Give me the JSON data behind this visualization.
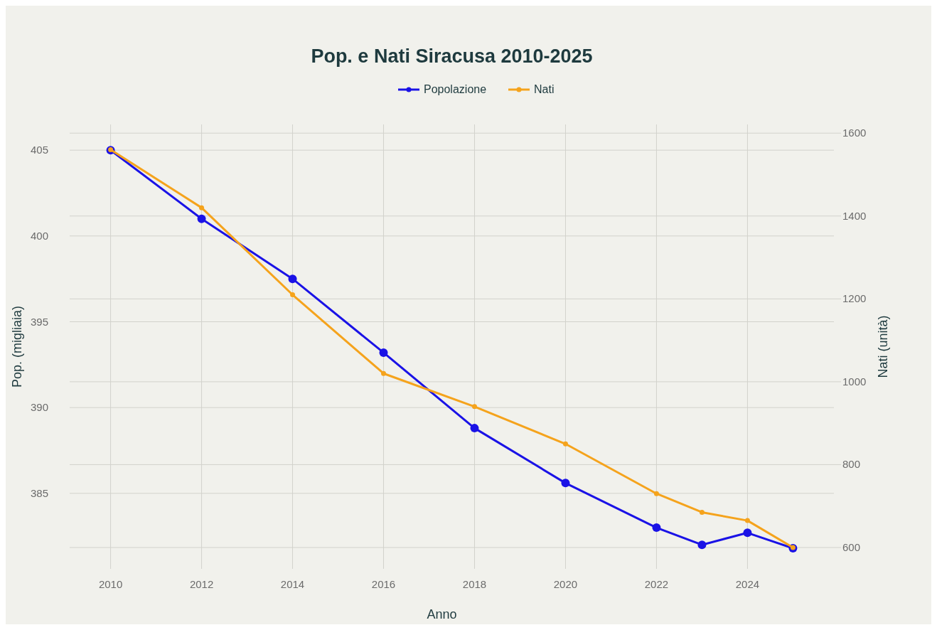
{
  "chart_data": {
    "type": "line",
    "title": "Pop. e Nati Siracusa 2010-2025",
    "xlabel": "Anno",
    "ylabel": "Pop. (migliaia)",
    "y2label": "Nati (unità)",
    "x": [
      2010,
      2012,
      2014,
      2016,
      2018,
      2020,
      2022,
      2023,
      2024,
      2025
    ],
    "series": [
      {
        "name": "Popolazione",
        "color": "#1a12e6",
        "values": [
          405,
          401.0,
          397.5,
          393.2,
          388.8,
          385.6,
          383.0,
          382.0,
          382.7,
          381.8
        ]
      },
      {
        "name": "Nati",
        "color": "#f5a31c",
        "axis": "y2",
        "values": [
          1560,
          1420,
          1210,
          1020,
          940,
          850,
          730,
          685,
          665,
          600
        ]
      }
    ],
    "xlim": [
      2009.1,
      2025.9
    ],
    "xticks": [
      2010,
      2012,
      2014,
      2016,
      2018,
      2020,
      2022,
      2024
    ],
    "ylim": [
      380.6,
      406.5
    ],
    "yticks": [
      385,
      390,
      395,
      400,
      405
    ],
    "y2lim": [
      548.5,
      1621
    ],
    "y2ticks": [
      600,
      800,
      1000,
      1200,
      1400,
      1600
    ],
    "grid": true,
    "legend": "top",
    "marker": "circle",
    "line_style": "solid"
  }
}
